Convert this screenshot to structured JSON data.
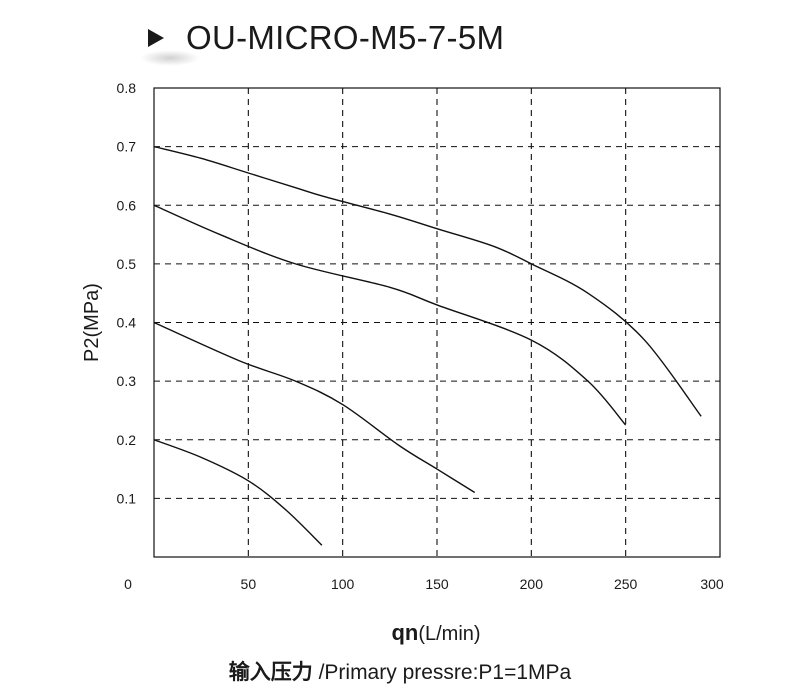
{
  "title": "OU-MICRO-M5-7-5M",
  "footer": {
    "label_cn": "输入压力",
    "label_en": " /Primary pressre:P1=1MPa"
  },
  "chart_data": {
    "type": "line",
    "title": "OU-MICRO-M5-7-5M",
    "xlabel_main": "qn",
    "xlabel_unit": "(L/min)",
    "ylabel": "P2(MPa)",
    "xlim": [
      0,
      300
    ],
    "ylim": [
      0,
      0.8
    ],
    "xticks": [
      0,
      50,
      100,
      150,
      200,
      250,
      300
    ],
    "yticks": [
      0.1,
      0.2,
      0.3,
      0.4,
      0.5,
      0.6,
      0.7,
      0.8
    ],
    "xtick_labels": [
      "0",
      "50",
      "100",
      "150",
      "200",
      "250",
      "300"
    ],
    "ytick_labels": [
      "0.1",
      "0.2",
      "0.3",
      "0.4",
      "0.5",
      "0.6",
      "0.7",
      "0.8"
    ],
    "grid": "dashed",
    "series": [
      {
        "x": [
          0,
          25,
          50,
          75,
          90
        ],
        "y": [
          0.7,
          0.68,
          0.655,
          0.63,
          0.615
        ],
        "x2": [
          90,
          125,
          150,
          180,
          200,
          230,
          260,
          290
        ],
        "y2": [
          0.61,
          0.585,
          0.56,
          0.53,
          0.5,
          0.45,
          0.37,
          0.24
        ]
      },
      {
        "x": [
          0,
          35,
          75,
          125,
          150,
          200,
          230,
          250
        ],
        "y": [
          0.6,
          0.55,
          0.5,
          0.46,
          0.43,
          0.37,
          0.3,
          0.225
        ]
      },
      {
        "x": [
          0,
          45,
          75,
          100,
          130,
          150,
          170
        ],
        "y": [
          0.4,
          0.335,
          0.3,
          0.26,
          0.19,
          0.15,
          0.11
        ]
      },
      {
        "x": [
          0,
          25,
          50,
          70,
          89
        ],
        "y": [
          0.2,
          0.17,
          0.13,
          0.08,
          0.02
        ]
      }
    ]
  }
}
